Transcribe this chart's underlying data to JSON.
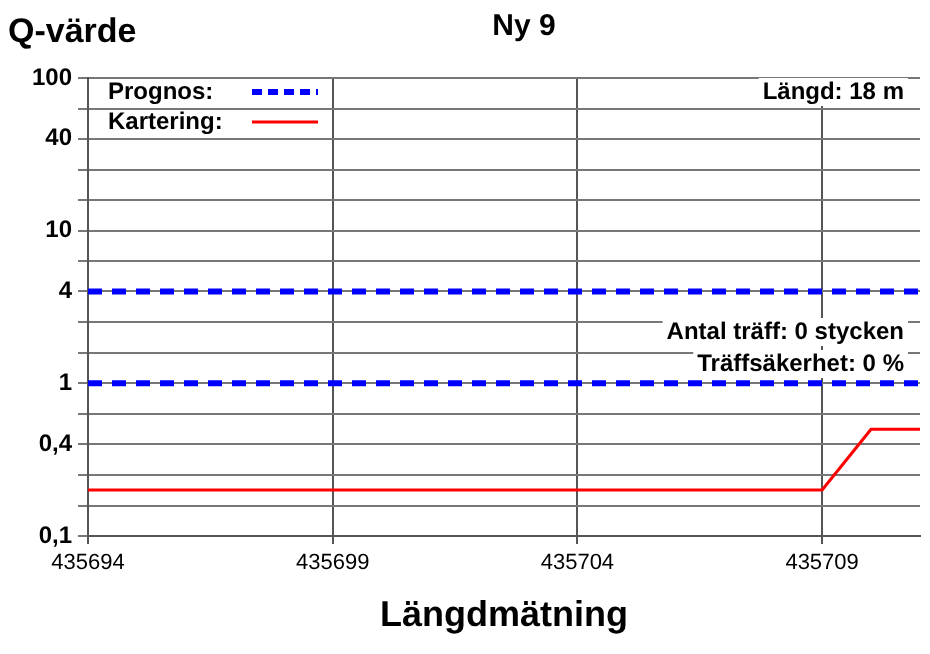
{
  "chart_data": {
    "type": "line",
    "title": "Ny 9",
    "ylabel": "Q-värde",
    "xlabel": "Längdmätning",
    "x": [
      435694,
      435709,
      435710,
      435711
    ],
    "series": [
      {
        "name": "Prognos:",
        "color": "#0000ff",
        "line_style": "dashed",
        "values": [
          4,
          4,
          4,
          4
        ]
      },
      {
        "color": "#0000ff",
        "line_style": "dashed",
        "values": [
          1,
          1,
          1,
          1
        ]
      },
      {
        "name": "Kartering:",
        "color": "#ff0000",
        "line_style": "solid",
        "values": [
          0.2,
          0.2,
          0.5,
          0.5
        ]
      }
    ],
    "log": "y",
    "xlim": [
      435694,
      435711
    ],
    "xticks": [
      435694,
      435699,
      435704,
      435709
    ],
    "ylim": [
      0.1,
      100
    ],
    "yticks": [
      100,
      {
        "value": 63.1,
        "label": null
      },
      40,
      {
        "value": 25.1,
        "label": null
      },
      {
        "value": 15.8,
        "label": null
      },
      10,
      {
        "value": 6.31,
        "label": null
      },
      4,
      {
        "value": 2.51,
        "label": null
      },
      {
        "value": 1.58,
        "label": null
      },
      1,
      {
        "value": 0.631,
        "label": null
      },
      {
        "value": 0.4,
        "label": "0,4"
      },
      {
        "value": 0.251,
        "label": null
      },
      {
        "value": 0.158,
        "label": null
      },
      {
        "value": 0.1,
        "label": "0,1"
      }
    ],
    "grid": true,
    "legend": "top left",
    "marker": "none",
    "annotations": [
      "Längd: 18 m",
      "Antal träff: 0 stycken",
      "Träffsäkerhet: 0 %"
    ]
  }
}
